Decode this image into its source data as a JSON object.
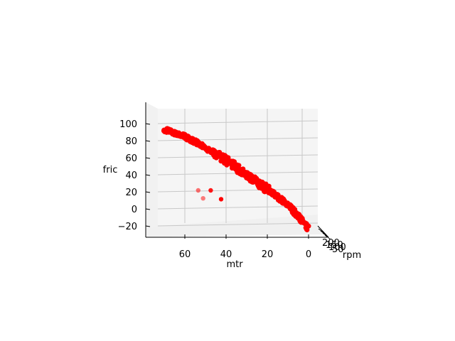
{
  "chart_data": {
    "type": "scatter",
    "projection": "3d",
    "xlabel": "mtr",
    "ylabel": "rpm",
    "zlabel": "fric",
    "x_ticks": [
      "60",
      "40",
      "20",
      "0"
    ],
    "y_ticks": [
      "200",
      "150",
      "100",
      "50"
    ],
    "z_ticks": [
      "100",
      "80",
      "60",
      "40",
      "20",
      "0",
      "−20"
    ],
    "xlim": [
      0,
      75
    ],
    "zlim": [
      -30,
      100
    ],
    "grid": true,
    "marker_color": "#ff0000",
    "main_band": [
      {
        "mtr": 70,
        "fric": 93
      },
      {
        "mtr": 60,
        "fric": 85
      },
      {
        "mtr": 50,
        "fric": 72
      },
      {
        "mtr": 40,
        "fric": 57
      },
      {
        "mtr": 30,
        "fric": 40
      },
      {
        "mtr": 20,
        "fric": 23
      },
      {
        "mtr": 10,
        "fric": 5
      },
      {
        "mtr": 0,
        "fric": -23
      }
    ],
    "outliers": [
      {
        "mtr": 48,
        "fric": 30
      },
      {
        "mtr": 44,
        "fric": 30
      },
      {
        "mtr": 47,
        "fric": 24
      },
      {
        "mtr": 40,
        "fric": 23
      }
    ]
  }
}
